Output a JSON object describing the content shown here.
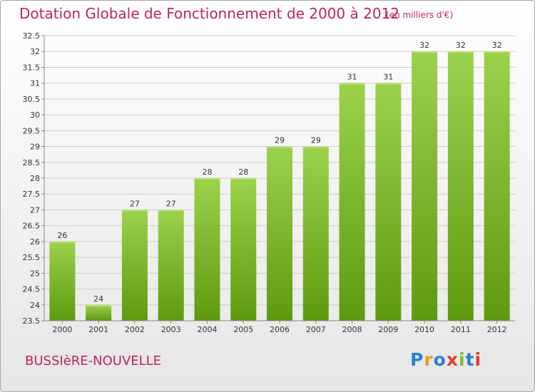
{
  "header": {
    "title": "Dotation Globale de Fonctionnement de 2000 à 2012",
    "subtitle": "(en milliers d'€)"
  },
  "footer": {
    "commune": "BUSSIèRE-NOUVELLE",
    "logo": "Proxiti"
  },
  "colors": {
    "title": "#c0245c",
    "bar_top": "#9bd24b",
    "bar_bottom": "#5e9a10",
    "grid": "#cccccc"
  },
  "chart_data": {
    "type": "bar",
    "title": "Dotation Globale de Fonctionnement de 2000 à 2012",
    "xlabel": "",
    "ylabel": "",
    "categories": [
      "2000",
      "2001",
      "2002",
      "2003",
      "2004",
      "2005",
      "2006",
      "2007",
      "2008",
      "2009",
      "2010",
      "2011",
      "2012"
    ],
    "values": [
      26,
      24,
      27,
      27,
      28,
      28,
      29,
      29,
      31,
      31,
      32,
      32,
      32
    ],
    "data_labels": [
      "26",
      "24",
      "27",
      "27",
      "28",
      "28",
      "29",
      "29",
      "31",
      "31",
      "32",
      "32",
      "32"
    ],
    "ylim": [
      23.5,
      32.5
    ],
    "yticks": [
      23.5,
      24,
      24.5,
      25,
      25.5,
      26,
      26.5,
      27,
      27.5,
      28,
      28.5,
      29,
      29.5,
      30,
      30.5,
      31,
      31.5,
      32,
      32.5
    ],
    "ytick_labels": [
      "23.5",
      "24",
      "24.5",
      "25",
      "25.5",
      "26",
      "26.5",
      "27",
      "27.5",
      "28",
      "28.5",
      "29",
      "29.5",
      "30",
      "30.5",
      "31",
      "31.5",
      "32",
      "32.5"
    ],
    "grid": true,
    "legend": "none"
  }
}
